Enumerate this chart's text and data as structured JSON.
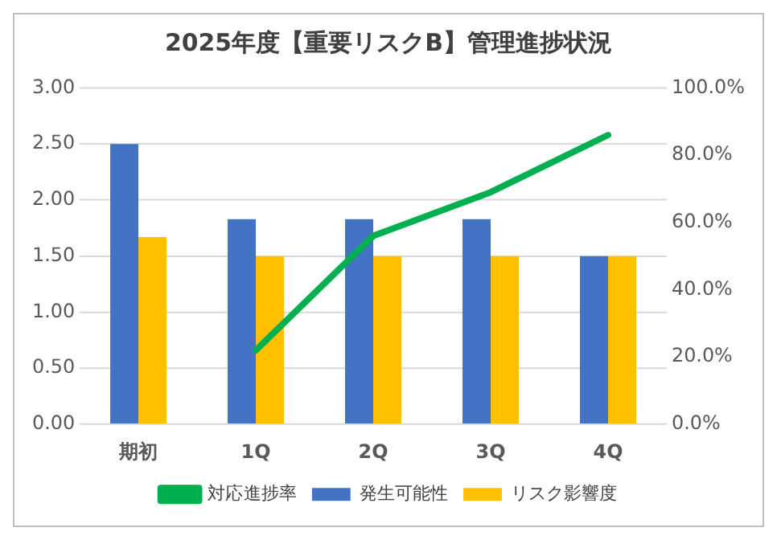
{
  "chart_data": {
    "type": "bar",
    "title": "2025年度【重要リスクB】管理進捗状況",
    "categories": [
      "期初",
      "1Q",
      "2Q",
      "3Q",
      "4Q"
    ],
    "series": [
      {
        "name": "発生可能性",
        "color": "#4472c4",
        "values": [
          2.5,
          1.83,
          1.83,
          1.83,
          1.5
        ]
      },
      {
        "name": "リスク影響度",
        "color": "#ffc000",
        "values": [
          1.67,
          1.5,
          1.5,
          1.5,
          1.5
        ]
      },
      {
        "name": "対応進捗率",
        "type": "line",
        "axis": "y2",
        "color": "#00b050",
        "values": [
          null,
          22,
          56,
          69,
          86
        ]
      }
    ],
    "ylim": [
      0,
      3
    ],
    "yticks": [
      {
        "value": 0,
        "label": "0.00"
      },
      {
        "value": 0.5,
        "label": "0.50"
      },
      {
        "value": 1,
        "label": "1.00"
      },
      {
        "value": 1.5,
        "label": "1.50"
      },
      {
        "value": 2,
        "label": "2.00"
      },
      {
        "value": 2.5,
        "label": "2.50"
      },
      {
        "value": 3,
        "label": "3.00"
      }
    ],
    "y2lim": [
      0,
      100
    ],
    "y2ticks": [
      {
        "value": 0,
        "label": "0.0%"
      },
      {
        "value": 20,
        "label": "20.0%"
      },
      {
        "value": 40,
        "label": "40.0%"
      },
      {
        "value": 60,
        "label": "60.0%"
      },
      {
        "value": 80,
        "label": "80.0%"
      },
      {
        "value": 100,
        "label": "100.0%"
      }
    ],
    "grid": "y",
    "legend": "bottom",
    "marker": "none"
  }
}
